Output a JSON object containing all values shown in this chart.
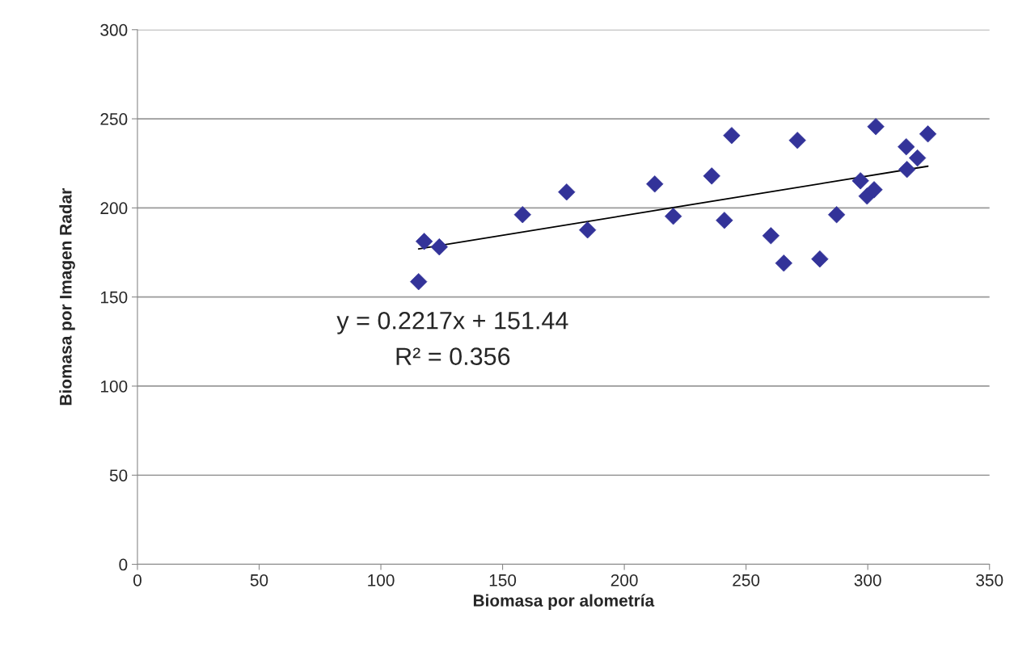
{
  "chart_data": {
    "type": "scatter",
    "xlabel": "Biomasa por alometría",
    "ylabel": "Biomasa por Imagen Radar",
    "xlim": [
      0,
      350
    ],
    "xticks": [
      0,
      50,
      100,
      150,
      200,
      250,
      300,
      350
    ],
    "ylim": [
      0,
      300
    ],
    "yticks": [
      0,
      50,
      100,
      150,
      200,
      250,
      300
    ],
    "grid": "y",
    "legend": false,
    "annotations": [
      "y = 0.2217x + 151.44",
      "R² = 0.356"
    ],
    "series": [
      {
        "marker": "diamond",
        "color": "#333399",
        "x": [
          115.5,
          117.8,
          124.0,
          158.2,
          176.3,
          184.9,
          212.5,
          220.1,
          235.9,
          241.1,
          244.1,
          260.2,
          265.5,
          271.1,
          280.3,
          287.2,
          297.0,
          299.7,
          302.6,
          303.3,
          315.8,
          316.1,
          320.4,
          324.7
        ],
        "values": [
          158.6,
          181.2,
          178.1,
          196.2,
          208.9,
          187.6,
          213.4,
          195.3,
          217.9,
          193.0,
          240.6,
          184.4,
          169.0,
          237.9,
          171.3,
          196.2,
          215.2,
          206.6,
          210.2,
          245.6,
          234.3,
          221.6,
          228.0,
          241.5
        ]
      },
      {
        "type": "line",
        "marker": "none",
        "color": "#000000",
        "x": [
          115.5,
          324.7
        ],
        "values": [
          177.0,
          223.4
        ]
      }
    ]
  }
}
